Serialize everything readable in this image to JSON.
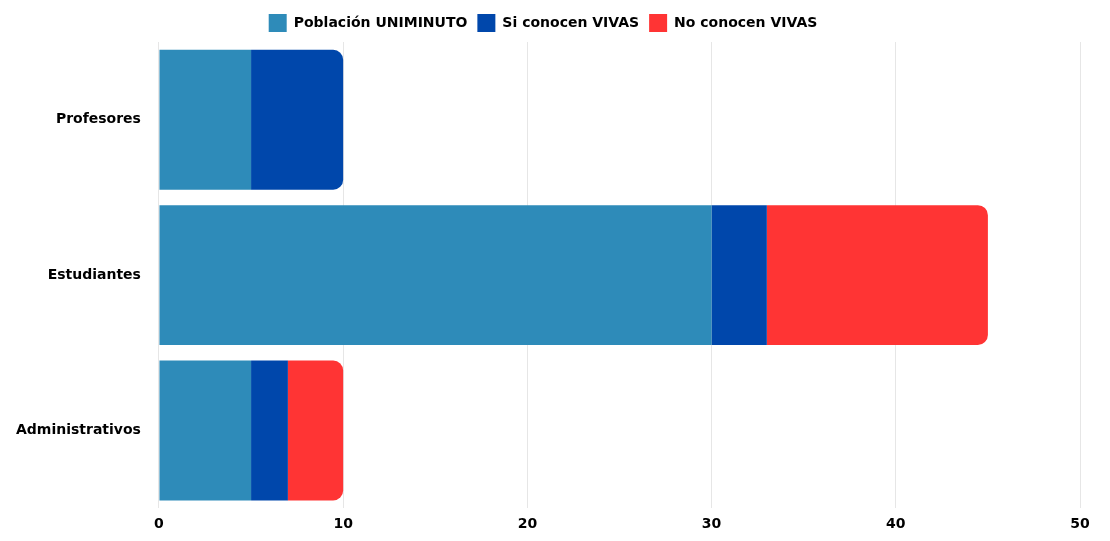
{
  "chart_data": {
    "type": "bar",
    "orientation": "horizontal",
    "stacked": true,
    "categories": [
      "Profesores",
      "Estudiantes",
      "Administrativos"
    ],
    "series": [
      {
        "name": "Población UNIMINUTO",
        "color": "#2e8bb9",
        "values": [
          5,
          30,
          5
        ]
      },
      {
        "name": "Si conocen VIVAS",
        "color": "#0047ab",
        "values": [
          5,
          3,
          2
        ]
      },
      {
        "name": "No conocen VIVAS",
        "color": "#ff3434",
        "values": [
          0,
          12,
          3
        ]
      }
    ],
    "xlim": [
      0,
      50
    ],
    "xticks": [
      0,
      10,
      20,
      30,
      40,
      50
    ],
    "grid": "x",
    "legend": "top"
  }
}
